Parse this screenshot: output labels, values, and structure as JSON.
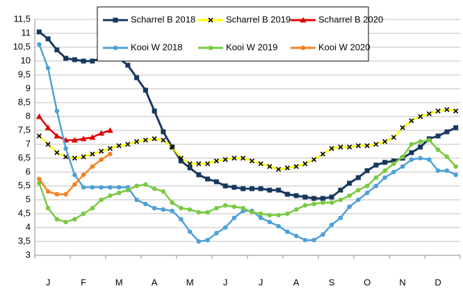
{
  "chart_data": {
    "type": "line",
    "categories": [
      null,
      "J",
      null,
      null,
      null,
      "F",
      null,
      null,
      null,
      "M",
      null,
      null,
      null,
      "A",
      null,
      null,
      null,
      "M",
      null,
      null,
      null,
      "J",
      null,
      null,
      null,
      "J",
      null,
      null,
      null,
      "A",
      null,
      null,
      null,
      "S",
      null,
      null,
      null,
      "O",
      null,
      null,
      null,
      "N",
      null,
      null,
      null,
      "D",
      null,
      null
    ],
    "series": [
      {
        "name": "Scharrel B 2018",
        "color": "#17375e",
        "marker": "square",
        "values": [
          11.05,
          10.8,
          10.4,
          10.1,
          10.05,
          10.0,
          10.0,
          10.1,
          10.1,
          10.1,
          9.85,
          9.4,
          8.95,
          8.2,
          7.45,
          6.9,
          6.4,
          6.15,
          5.9,
          5.75,
          5.65,
          5.5,
          5.45,
          5.4,
          5.4,
          5.4,
          5.35,
          5.35,
          5.2,
          5.15,
          5.1,
          5.05,
          5.05,
          5.1,
          5.35,
          5.6,
          5.8,
          6.05,
          6.25,
          6.35,
          6.4,
          6.5,
          6.7,
          6.9,
          7.2,
          7.3,
          7.45,
          7.6
        ]
      },
      {
        "name": "Scharrel B 2019",
        "color": "#ffff00",
        "marker": "x",
        "values": [
          7.3,
          7.0,
          6.7,
          6.55,
          6.5,
          6.55,
          6.65,
          6.75,
          6.85,
          6.95,
          7.0,
          7.1,
          7.15,
          7.2,
          7.15,
          6.9,
          6.5,
          6.3,
          6.3,
          6.3,
          6.4,
          6.45,
          6.5,
          6.5,
          6.4,
          6.3,
          6.2,
          6.1,
          6.15,
          6.2,
          6.3,
          6.45,
          6.65,
          6.85,
          6.9,
          6.9,
          6.95,
          6.95,
          7.0,
          7.1,
          7.25,
          7.6,
          7.85,
          8.0,
          8.1,
          8.2,
          8.25,
          8.2
        ]
      },
      {
        "name": "Scharrel B 2020",
        "color": "#e00000",
        "marker": "triangle",
        "values": [
          8.0,
          7.6,
          7.3,
          7.15,
          7.15,
          7.2,
          7.25,
          7.4,
          7.5,
          null,
          null,
          null,
          null,
          null,
          null,
          null,
          null,
          null,
          null,
          null,
          null,
          null,
          null,
          null,
          null,
          null,
          null,
          null,
          null,
          null,
          null,
          null,
          null,
          null,
          null,
          null,
          null,
          null,
          null,
          null,
          null,
          null,
          null,
          null,
          null,
          null,
          null,
          null
        ]
      },
      {
        "name": "Kooi W 2018",
        "color": "#4ea0d8",
        "marker": "circle",
        "values": [
          10.6,
          9.75,
          8.2,
          6.85,
          5.9,
          5.45,
          5.45,
          5.45,
          5.45,
          5.45,
          5.45,
          5.0,
          4.85,
          4.7,
          4.65,
          4.6,
          4.3,
          3.85,
          3.5,
          3.55,
          3.8,
          4.0,
          4.35,
          4.6,
          4.6,
          4.35,
          4.2,
          4.05,
          3.85,
          3.7,
          3.55,
          3.55,
          3.75,
          4.1,
          4.35,
          4.75,
          5.0,
          5.25,
          5.5,
          5.8,
          6.0,
          6.2,
          6.45,
          6.5,
          6.45,
          6.05,
          6.05,
          5.9
        ]
      },
      {
        "name": "Kooi W 2019",
        "color": "#7ac943",
        "marker": "circle",
        "values": [
          5.6,
          4.7,
          4.3,
          4.2,
          4.3,
          4.5,
          4.7,
          5.0,
          5.15,
          5.25,
          5.35,
          5.5,
          5.55,
          5.4,
          5.3,
          4.9,
          4.7,
          4.65,
          4.55,
          4.55,
          4.7,
          4.8,
          4.75,
          4.7,
          4.55,
          4.5,
          4.45,
          4.45,
          4.5,
          4.65,
          4.8,
          4.85,
          4.9,
          4.9,
          5.0,
          5.15,
          5.35,
          5.5,
          5.8,
          6.05,
          6.3,
          6.55,
          7.0,
          7.1,
          7.15,
          6.8,
          6.55,
          6.2
        ]
      },
      {
        "name": "Kooi W 2020",
        "color": "#f58220",
        "marker": "circle",
        "values": [
          5.75,
          5.3,
          5.2,
          5.2,
          5.55,
          5.9,
          6.2,
          6.45,
          6.65,
          null,
          null,
          null,
          null,
          null,
          null,
          null,
          null,
          null,
          null,
          null,
          null,
          null,
          null,
          null,
          null,
          null,
          null,
          null,
          null,
          null,
          null,
          null,
          null,
          null,
          null,
          null,
          null,
          null,
          null,
          null,
          null,
          null,
          null,
          null,
          null,
          null,
          null,
          null
        ]
      }
    ],
    "ylim": [
      3,
      11.5
    ],
    "yticks": [
      3,
      {
        "value": 3.5,
        "label": "3,5"
      },
      4,
      {
        "value": 4.5,
        "label": "4,5"
      },
      5,
      {
        "value": 5.5,
        "label": "5,5"
      },
      6,
      {
        "value": 6.5,
        "label": "6,5"
      },
      7,
      {
        "value": 7.5,
        "label": "7,5"
      },
      8,
      {
        "value": 8.5,
        "label": "8,5"
      },
      9,
      {
        "value": 9.5,
        "label": "9,5"
      },
      10,
      {
        "value": 10.5,
        "label": "10,5"
      },
      11,
      {
        "value": 11.5,
        "label": "11,5"
      }
    ],
    "grid": true,
    "legend": "top-center"
  }
}
